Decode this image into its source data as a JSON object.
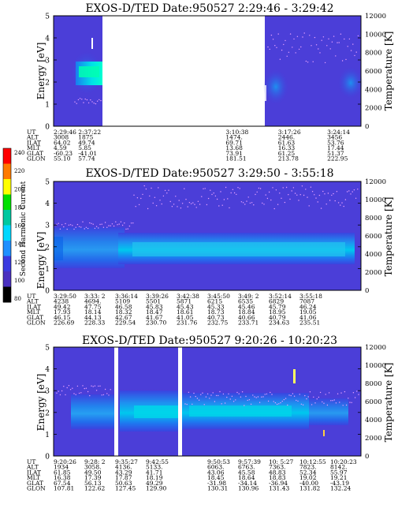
{
  "colorbar": {
    "label": "Second Harmonic Current",
    "ticks": [
      "240",
      "220",
      "200",
      "180",
      "160",
      "140",
      "120",
      "100",
      "80"
    ],
    "colors": [
      "#ff0000",
      "#ff7a00",
      "#ffff00",
      "#00e000",
      "#00c8a0",
      "#00d8ff",
      "#1e90ff",
      "#3a3ae0",
      "#4a30c0",
      "#000000"
    ]
  },
  "chart_data": [
    {
      "type": "heatmap",
      "title": "EXOS-D/TED   Date:950527  2:29:46 - 3:29:42",
      "ylabel": "Energy [eV]",
      "ylabel_right": "Temperature [K]",
      "ylim": [
        0,
        5
      ],
      "ylim_right": [
        0,
        12000
      ],
      "yticks": [
        "0",
        "1",
        "2",
        "3",
        "4",
        "5"
      ],
      "yticks_right": [
        "0",
        "2000",
        "4000",
        "6000",
        "8000",
        "10000",
        "12000"
      ],
      "data_gap": [
        0.07,
        0.52
      ],
      "orbit_table": {
        "rows": [
          "UT",
          "ALT",
          "ILAT",
          "MLT",
          "GLAT",
          "GLON"
        ],
        "columns": [
          {
            "pos": 0.0,
            "values": [
              "2:29:46",
              "3008",
              "64.02",
              "4.59",
              "-60.23",
              "55.10"
            ]
          },
          {
            "pos": 0.08,
            "values": [
              "2:37:22",
              "1875",
              "49.74",
              "5.85",
              "-41.01",
              "57.74"
            ]
          },
          {
            "pos": 0.56,
            "values": [
              "3:10:38",
              "1474.",
              "69.71",
              "13.68",
              "73.91",
              "181.51"
            ]
          },
          {
            "pos": 0.73,
            "values": [
              "3:17:26",
              "2446.",
              "61.63",
              "16.33",
              "61.25",
              "213.78"
            ]
          },
          {
            "pos": 0.89,
            "values": [
              "3:24:14",
              "3456",
              "53.76",
              "17.44",
              "51.37",
              "222.95"
            ]
          }
        ]
      }
    },
    {
      "type": "heatmap",
      "title": "EXOS-D/TED   Date:950527  3:29:50 - 3:55:18",
      "ylabel": "Energy [eV]",
      "ylabel_right": "Temperature [K]",
      "ylim": [
        0,
        5
      ],
      "ylim_right": [
        0,
        12000
      ],
      "yticks": [
        "0",
        "1",
        "2",
        "3",
        "4",
        "5"
      ],
      "yticks_right": [
        "0",
        "2000",
        "4000",
        "6000",
        "8000",
        "10000",
        "12000"
      ],
      "orbit_table": {
        "rows": [
          "UT",
          "ALT",
          "ILAT",
          "MLT",
          "GLAT",
          "GLON"
        ],
        "columns": [
          {
            "pos": 0.0,
            "values": [
              "3:29:50",
              "4238",
              "49.42",
              "17.93",
              "46.15",
              "226.69"
            ]
          },
          {
            "pos": 0.1,
            "values": [
              "3:33: 2",
              "4694.",
              "47.75",
              "18.14",
              "44.13",
              "228.33"
            ]
          },
          {
            "pos": 0.2,
            "values": [
              "3:36:14",
              "5109",
              "46.58",
              "18.32",
              "42.67",
              "229.54"
            ]
          },
          {
            "pos": 0.3,
            "values": [
              "3:39:26",
              "5501",
              "45.83",
              "18.47",
              "41.67",
              "230.70"
            ]
          },
          {
            "pos": 0.4,
            "values": [
              "3:42:38",
              "5871",
              "45.43",
              "18.61",
              "41.05",
              "231.76"
            ]
          },
          {
            "pos": 0.5,
            "values": [
              "3:45:50",
              "6215",
              "45.33",
              "18.73",
              "40.73",
              "232.75"
            ]
          },
          {
            "pos": 0.6,
            "values": [
              "3:49: 2",
              "6535",
              "45.46",
              "18.84",
              "40.66",
              "233.71"
            ]
          },
          {
            "pos": 0.7,
            "values": [
              "3:52:14",
              "6829",
              "45.79",
              "18.95",
              "40.79",
              "234.63"
            ]
          },
          {
            "pos": 0.8,
            "values": [
              "3:55:18",
              "7087",
              "46.24",
              "19.05",
              "41.06",
              "235.51"
            ]
          }
        ]
      }
    },
    {
      "type": "heatmap",
      "title": "EXOS-D/TED   Date:950527  9:20:26 - 10:20:23",
      "ylabel": "Energy [eV]",
      "ylabel_right": "Temperature [K]",
      "ylim": [
        0,
        5
      ],
      "ylim_right": [
        0,
        12000
      ],
      "yticks": [
        "0",
        "1",
        "2",
        "3",
        "4",
        "5"
      ],
      "yticks_right": [
        "0",
        "2000",
        "4000",
        "6000",
        "8000",
        "10000",
        "12000"
      ],
      "orbit_table": {
        "rows": [
          "UT",
          "ALT",
          "ILAT",
          "MLT",
          "GLAT",
          "GLON"
        ],
        "columns": [
          {
            "pos": 0.0,
            "values": [
              "9:20:26",
              "1934",
              "61.85",
              "16.38",
              "67.54",
              "107.81"
            ]
          },
          {
            "pos": 0.1,
            "values": [
              "9:28: 2",
              "3058.",
              "49.50",
              "17.39",
              "56.13",
              "122.62"
            ]
          },
          {
            "pos": 0.2,
            "values": [
              "9:35:27",
              "4136.",
              "43.29",
              "17.87",
              "50.63",
              "127.45"
            ]
          },
          {
            "pos": 0.3,
            "values": [
              "9:42:55",
              "5133.",
              "41.71",
              "18.19",
              "49.29",
              "129.90"
            ]
          },
          {
            "pos": 0.5,
            "values": [
              "9:50:53",
              "6063.",
              "43.06",
              "18.45",
              "-31.98",
              "130.31"
            ]
          },
          {
            "pos": 0.6,
            "values": [
              "9:57:39",
              "6763.",
              "45.58",
              "18.64",
              "-34.14",
              "130.96"
            ]
          },
          {
            "pos": 0.7,
            "values": [
              "10: 5:27",
              "7363.",
              "48.83",
              "18.83",
              "-36.94",
              "131.43"
            ]
          },
          {
            "pos": 0.8,
            "values": [
              "10:12:55",
              "7823.",
              "52.34",
              "19.02",
              "-40.00",
              "131.82"
            ]
          },
          {
            "pos": 0.9,
            "values": [
              "10:20:23",
              "8142.",
              "55.97",
              "19.21",
              "-43.19",
              "132.24"
            ]
          }
        ]
      }
    }
  ]
}
